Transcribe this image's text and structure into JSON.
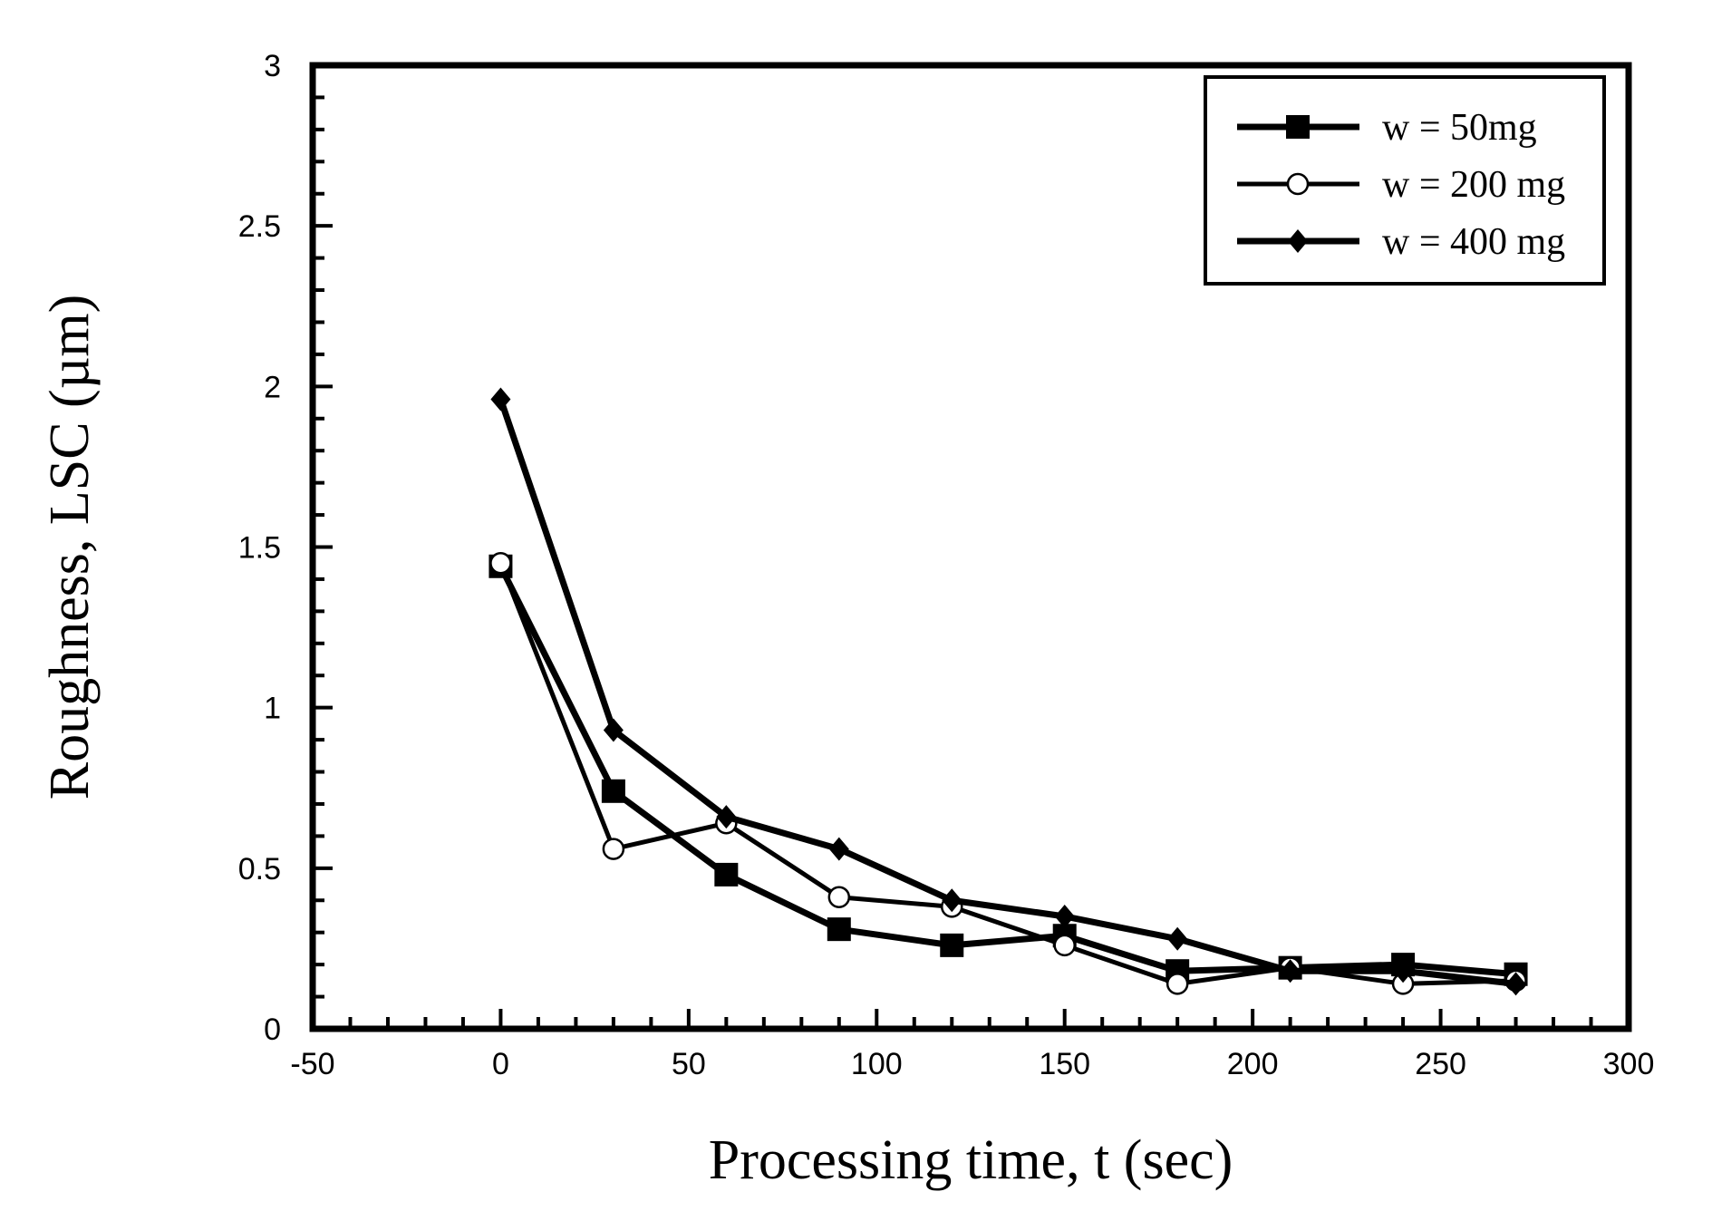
{
  "chart_data": {
    "type": "line",
    "title": "",
    "xlabel": "Processing time, t (sec)",
    "ylabel": "Roughness, LSC (µm)",
    "xlim": [
      -50,
      300
    ],
    "ylim": [
      0,
      3
    ],
    "xticks": [
      -50,
      0,
      50,
      100,
      150,
      200,
      250,
      300
    ],
    "yticks": [
      0,
      0.5,
      1,
      1.5,
      2,
      2.5,
      3
    ],
    "xtick_labels": [
      "-50",
      "0",
      "50",
      "100",
      "150",
      "200",
      "250",
      "300"
    ],
    "ytick_labels": [
      "0",
      "0.5",
      "1",
      "1.5",
      "2",
      "2.5",
      "3"
    ],
    "grid": false,
    "legend_position": "top-right",
    "x": [
      0,
      30,
      60,
      90,
      120,
      150,
      180,
      210,
      240,
      270
    ],
    "series": [
      {
        "name": "w = 50mg",
        "marker": "square-filled",
        "values": [
          1.44,
          0.74,
          0.48,
          0.31,
          0.26,
          0.29,
          0.18,
          0.19,
          0.2,
          0.17
        ]
      },
      {
        "name": "w = 200 mg",
        "marker": "circle-open",
        "values": [
          1.45,
          0.56,
          0.64,
          0.41,
          0.38,
          0.26,
          0.14,
          0.19,
          0.14,
          0.15
        ]
      },
      {
        "name": "w = 400 mg",
        "marker": "diamond-filled",
        "values": [
          1.96,
          0.93,
          0.66,
          0.56,
          0.4,
          0.35,
          0.28,
          0.18,
          0.18,
          0.14
        ]
      }
    ]
  }
}
